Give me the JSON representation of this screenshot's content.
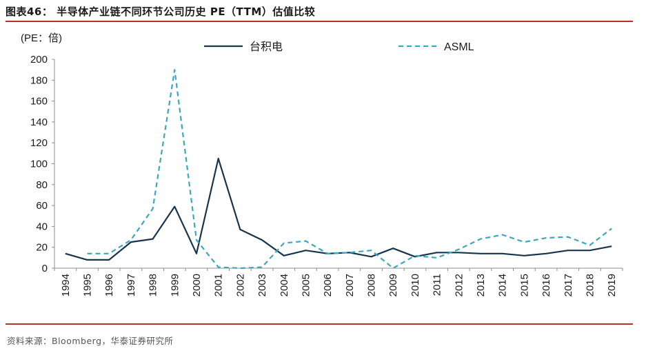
{
  "figure": {
    "title": "图表46：  半导体产业链不同环节公司历史 PE（TTM）估值比较",
    "source": "资料来源：Bloomberg，华泰证券研究所"
  },
  "chart_data": {
    "type": "line",
    "title": "",
    "ylabel": "(PE：倍)",
    "xlabel": "",
    "ylim": [
      0,
      200
    ],
    "yticks": [
      0,
      20,
      40,
      60,
      80,
      100,
      120,
      140,
      160,
      180,
      200
    ],
    "categories": [
      "1994",
      "1995",
      "1996",
      "1997",
      "1998",
      "1999",
      "2000",
      "2001",
      "2002",
      "2003",
      "2004",
      "2005",
      "2006",
      "2007",
      "2008",
      "2009",
      "2010",
      "2011",
      "2012",
      "2013",
      "2014",
      "2015",
      "2016",
      "2017",
      "2018",
      "2019"
    ],
    "grid": false,
    "legend_position": "top",
    "series": [
      {
        "name": "台积电",
        "color": "#17344d",
        "style": "solid",
        "values": [
          14,
          8,
          8,
          25,
          28,
          59,
          14,
          105,
          37,
          27,
          12,
          17,
          14,
          15,
          11,
          19,
          11,
          15,
          15,
          14,
          14,
          12,
          14,
          17,
          17,
          21
        ]
      },
      {
        "name": "ASML",
        "color": "#3da6be",
        "style": "dashed",
        "values": [
          null,
          14,
          14,
          27,
          57,
          190,
          27,
          1,
          0,
          1,
          24,
          26,
          14,
          15,
          17,
          0,
          12,
          10,
          18,
          28,
          32,
          25,
          29,
          30,
          22,
          38
        ]
      }
    ]
  }
}
